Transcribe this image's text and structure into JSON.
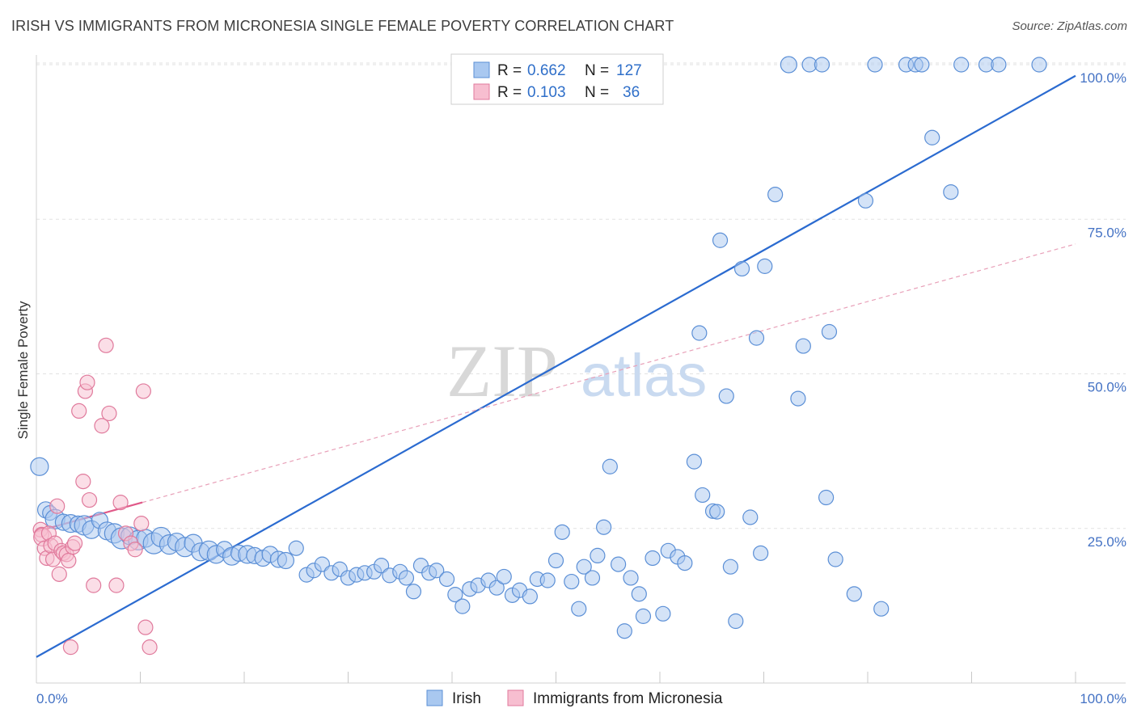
{
  "header": {
    "title": "IRISH VS IMMIGRANTS FROM MICRONESIA SINGLE FEMALE POVERTY CORRELATION CHART",
    "source": "Source: ZipAtlas.com"
  },
  "watermark": {
    "zip": "ZIP",
    "atlas": "atlas"
  },
  "legend_top": {
    "r_label": "R =",
    "n_label": "N =",
    "rows": [
      {
        "r": "0.662",
        "n": "127",
        "color": "#a9c8f0",
        "stroke": "#5b8fd6"
      },
      {
        "r": "0.103",
        "n": "36",
        "color": "#f7bed0",
        "stroke": "#e07a9c"
      }
    ]
  },
  "chart_data": {
    "type": "scatter",
    "title": "IRISH VS IMMIGRANTS FROM MICRONESIA SINGLE FEMALE POVERTY CORRELATION CHART",
    "ylabel": "Single Female Poverty",
    "xlabel": "",
    "xlim": [
      0,
      100
    ],
    "ylim": [
      0,
      100
    ],
    "x_tick_labels": [
      {
        "value": 0,
        "label": "0.0%"
      },
      {
        "value": 100,
        "label": "100.0%"
      }
    ],
    "y_tick_labels": [
      {
        "value": 25,
        "label": "25.0%"
      },
      {
        "value": 50,
        "label": "50.0%"
      },
      {
        "value": 75,
        "label": "75.0%"
      },
      {
        "value": 100,
        "label": "100.0%"
      }
    ],
    "grid": true,
    "legend_position": "bottom-center",
    "series": [
      {
        "name": "Irish",
        "color": "#a9c8f0",
        "stroke": "#5b8fd6",
        "r": 0.662,
        "n": 127,
        "trend": {
          "x": [
            0,
            100
          ],
          "y": [
            4.2,
            98.2
          ],
          "color": "#2b6bd0",
          "style": "solid"
        },
        "points": [
          [
            0.3,
            35,
            11
          ],
          [
            0.9,
            28,
            10
          ],
          [
            1.3,
            27.5,
            9
          ],
          [
            1.8,
            26.5,
            12
          ],
          [
            2.6,
            26,
            10
          ],
          [
            3.3,
            25.8,
            11
          ],
          [
            4.0,
            25.7,
            10
          ],
          [
            4.6,
            25.5,
            12
          ],
          [
            5.3,
            24.8,
            11
          ],
          [
            6.1,
            26.3,
            10
          ],
          [
            6.8,
            24.6,
            11
          ],
          [
            7.5,
            24.2,
            12
          ],
          [
            8.2,
            23.4,
            13
          ],
          [
            9.0,
            23.8,
            11
          ],
          [
            9.8,
            23.1,
            12
          ],
          [
            10.5,
            23.4,
            11
          ],
          [
            11.3,
            22.6,
            13
          ],
          [
            12.0,
            23.6,
            12
          ],
          [
            12.8,
            22.4,
            12
          ],
          [
            13.5,
            22.8,
            11
          ],
          [
            14.3,
            22.0,
            12
          ],
          [
            15.1,
            22.6,
            11
          ],
          [
            15.8,
            21.2,
            11
          ],
          [
            16.6,
            21.4,
            12
          ],
          [
            17.3,
            20.8,
            11
          ],
          [
            18.1,
            21.6,
            10
          ],
          [
            18.8,
            20.5,
            11
          ],
          [
            19.5,
            21.0,
            10
          ],
          [
            20.3,
            20.8,
            11
          ],
          [
            21.0,
            20.6,
            10
          ],
          [
            21.8,
            20.2,
            10
          ],
          [
            22.5,
            20.8,
            10
          ],
          [
            23.3,
            20.0,
            10
          ],
          [
            24.0,
            19.8,
            10
          ],
          [
            25.0,
            21.8,
            9
          ],
          [
            26.0,
            17.5,
            9
          ],
          [
            26.7,
            18.2,
            9
          ],
          [
            27.5,
            19.2,
            9
          ],
          [
            28.4,
            17.8,
            9
          ],
          [
            29.2,
            18.4,
            9
          ],
          [
            30.0,
            17.0,
            9
          ],
          [
            30.8,
            17.5,
            9
          ],
          [
            31.6,
            17.8,
            9
          ],
          [
            32.5,
            18.0,
            9
          ],
          [
            33.2,
            19.0,
            9
          ],
          [
            34.0,
            17.4,
            9
          ],
          [
            35.0,
            18.0,
            9
          ],
          [
            35.6,
            17.0,
            9
          ],
          [
            36.3,
            14.8,
            9
          ],
          [
            37.0,
            19.0,
            9
          ],
          [
            37.8,
            17.8,
            9
          ],
          [
            38.5,
            18.2,
            9
          ],
          [
            39.5,
            16.8,
            9
          ],
          [
            40.3,
            14.3,
            9
          ],
          [
            41.0,
            12.4,
            9
          ],
          [
            41.7,
            15.2,
            9
          ],
          [
            42.5,
            15.8,
            9
          ],
          [
            43.5,
            16.6,
            9
          ],
          [
            44.3,
            15.4,
            9
          ],
          [
            45.0,
            17.2,
            9
          ],
          [
            45.8,
            14.2,
            9
          ],
          [
            46.5,
            15.0,
            9
          ],
          [
            47.5,
            14.0,
            9
          ],
          [
            48.2,
            16.8,
            9
          ],
          [
            49.2,
            16.6,
            9
          ],
          [
            50.0,
            19.8,
            9
          ],
          [
            50.6,
            24.4,
            9
          ],
          [
            51.5,
            16.4,
            9
          ],
          [
            52.2,
            12.0,
            9
          ],
          [
            52.7,
            18.8,
            9
          ],
          [
            53.5,
            17.0,
            9
          ],
          [
            54.0,
            20.6,
            9
          ],
          [
            54.6,
            25.2,
            9
          ],
          [
            55.2,
            35.0,
            9
          ],
          [
            56.0,
            19.2,
            9
          ],
          [
            56.6,
            8.4,
            9
          ],
          [
            57.2,
            17.0,
            9
          ],
          [
            58.0,
            14.4,
            9
          ],
          [
            58.4,
            10.8,
            9
          ],
          [
            59.3,
            20.2,
            9
          ],
          [
            60.3,
            11.2,
            9
          ],
          [
            60.8,
            21.4,
            9
          ],
          [
            61.7,
            20.4,
            9
          ],
          [
            62.4,
            19.4,
            9
          ],
          [
            63.3,
            35.8,
            9
          ],
          [
            63.8,
            56.6,
            9
          ],
          [
            64.1,
            30.4,
            9
          ],
          [
            65.1,
            27.8,
            9
          ],
          [
            65.5,
            27.7,
            9
          ],
          [
            65.8,
            71.6,
            9
          ],
          [
            66.4,
            46.4,
            9
          ],
          [
            66.8,
            18.8,
            9
          ],
          [
            67.3,
            10.0,
            9
          ],
          [
            67.9,
            67.0,
            9
          ],
          [
            68.7,
            26.8,
            9
          ],
          [
            69.3,
            55.8,
            9
          ],
          [
            69.7,
            21.0,
            9
          ],
          [
            70.1,
            67.4,
            9
          ],
          [
            71.1,
            79.0,
            9
          ],
          [
            72.4,
            100.0,
            10
          ],
          [
            73.3,
            46.0,
            9
          ],
          [
            73.8,
            54.5,
            9
          ],
          [
            74.4,
            100.0,
            9
          ],
          [
            75.6,
            100.0,
            9
          ],
          [
            76.0,
            30.0,
            9
          ],
          [
            76.3,
            56.8,
            9
          ],
          [
            76.9,
            20.0,
            9
          ],
          [
            78.7,
            14.4,
            9
          ],
          [
            79.8,
            78.0,
            9
          ],
          [
            80.7,
            100.0,
            9
          ],
          [
            81.3,
            12.0,
            9
          ],
          [
            83.7,
            100.0,
            9
          ],
          [
            84.6,
            100.0,
            9
          ],
          [
            85.2,
            100.0,
            9
          ],
          [
            86.2,
            88.2,
            9
          ],
          [
            88.0,
            79.4,
            9
          ],
          [
            89.0,
            100.0,
            9
          ],
          [
            91.4,
            100.0,
            9
          ],
          [
            92.6,
            100.0,
            9
          ],
          [
            96.5,
            100.0,
            9
          ]
        ]
      },
      {
        "name": "Immigrants from Micronesia",
        "color": "#f7bed0",
        "stroke": "#e07a9c",
        "r": 0.103,
        "n": 36,
        "trend_solid": {
          "x": [
            0,
            10.2
          ],
          "y": [
            24.5,
            29.2
          ],
          "color": "#e05888",
          "style": "solid"
        },
        "trend_dashed": {
          "x": [
            10.2,
            100
          ],
          "y": [
            29.2,
            71.0
          ],
          "color": "#e8a0b8",
          "style": "dashed"
        },
        "points": [
          [
            0.4,
            24.8,
            9
          ],
          [
            0.5,
            24.0,
            9
          ],
          [
            0.6,
            23.6,
            11
          ],
          [
            0.8,
            21.8,
            9
          ],
          [
            1.0,
            20.2,
            9
          ],
          [
            1.2,
            24.2,
            9
          ],
          [
            1.4,
            22.2,
            9
          ],
          [
            1.6,
            20.0,
            9
          ],
          [
            1.8,
            22.6,
            9
          ],
          [
            2.0,
            28.6,
            9
          ],
          [
            2.2,
            17.6,
            9
          ],
          [
            2.4,
            21.4,
            9
          ],
          [
            2.6,
            21.0,
            9
          ],
          [
            2.9,
            20.8,
            9
          ],
          [
            3.1,
            19.8,
            9
          ],
          [
            3.3,
            5.8,
            9
          ],
          [
            3.5,
            22.0,
            9
          ],
          [
            3.7,
            22.6,
            9
          ],
          [
            4.1,
            44.0,
            9
          ],
          [
            4.5,
            32.6,
            9
          ],
          [
            4.7,
            47.2,
            9
          ],
          [
            4.9,
            48.6,
            9
          ],
          [
            5.1,
            29.6,
            9
          ],
          [
            5.5,
            15.8,
            9
          ],
          [
            6.3,
            41.6,
            9
          ],
          [
            6.7,
            54.6,
            9
          ],
          [
            7.0,
            43.6,
            9
          ],
          [
            7.7,
            15.8,
            9
          ],
          [
            8.1,
            29.2,
            9
          ],
          [
            8.6,
            24.2,
            9
          ],
          [
            9.1,
            22.6,
            9
          ],
          [
            9.5,
            21.6,
            9
          ],
          [
            10.1,
            25.8,
            9
          ],
          [
            10.3,
            47.2,
            9
          ],
          [
            10.5,
            9.0,
            9
          ],
          [
            10.9,
            5.8,
            9
          ]
        ]
      }
    ]
  }
}
